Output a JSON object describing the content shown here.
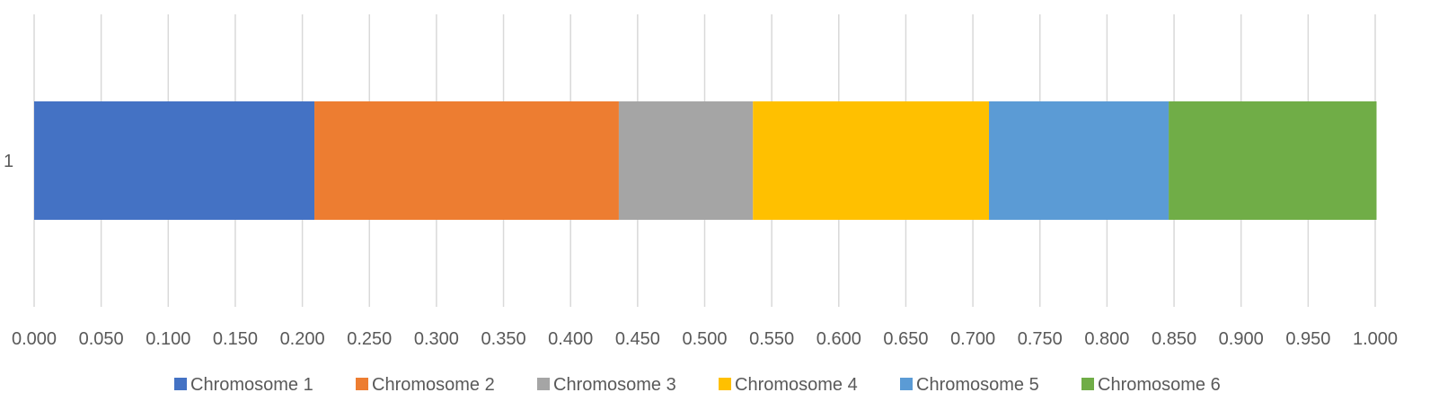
{
  "chart_data": {
    "type": "bar",
    "orientation": "horizontal",
    "stacked": true,
    "title": "",
    "xlabel": "",
    "ylabel": "",
    "categories": [
      "1"
    ],
    "xlim": [
      0,
      1.0
    ],
    "x_ticks": [
      "0.000",
      "0.050",
      "0.100",
      "0.150",
      "0.200",
      "0.250",
      "0.300",
      "0.350",
      "0.400",
      "0.450",
      "0.500",
      "0.550",
      "0.600",
      "0.650",
      "0.700",
      "0.750",
      "0.800",
      "0.850",
      "0.900",
      "0.950",
      "1.000"
    ],
    "grid": true,
    "legend_position": "bottom",
    "series": [
      {
        "name": "Chromosome 1",
        "values": [
          0.209
        ],
        "color": "#4472C4"
      },
      {
        "name": "Chromosome 2",
        "values": [
          0.227
        ],
        "color": "#ED7D31"
      },
      {
        "name": "Chromosome 3",
        "values": [
          0.1
        ],
        "color": "#A5A5A5"
      },
      {
        "name": "Chromosome 4",
        "values": [
          0.176
        ],
        "color": "#FFC000"
      },
      {
        "name": "Chromosome 5",
        "values": [
          0.134
        ],
        "color": "#5B9BD5"
      },
      {
        "name": "Chromosome 6",
        "values": [
          0.155
        ],
        "color": "#70AD47"
      }
    ]
  }
}
